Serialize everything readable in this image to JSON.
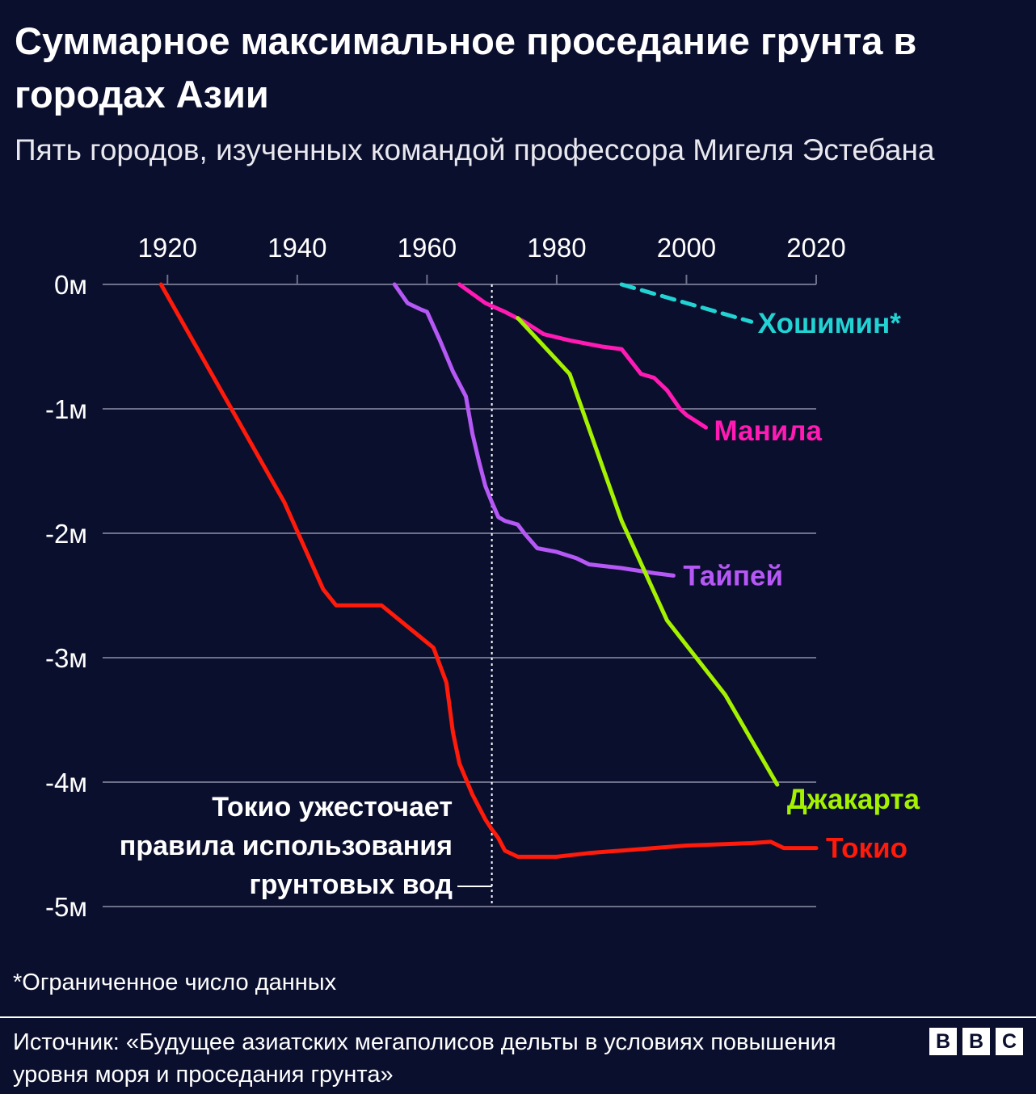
{
  "title": "Суммарное максимальное проседание грунта в городах Азии",
  "subtitle": "Пять городов, изученных командой профессора Мигеля Эстебана",
  "footnote": "*Ограниченное число данных",
  "source": "Источник: «Будущее азиатских мегаполисов дельты в условиях повышения уровня моря и проседания грунта»",
  "logo": [
    "B",
    "B",
    "C"
  ],
  "chart_data": {
    "type": "line",
    "title": "Суммарное максимальное проседание грунта в городах Азии",
    "xlabel": "",
    "ylabel": "",
    "xlim": [
      1910,
      2020
    ],
    "ylim": [
      -5,
      0
    ],
    "x_ticks": [
      1920,
      1940,
      1960,
      1980,
      2000,
      2020
    ],
    "x_tick_labels": [
      "1920",
      "1940",
      "1960",
      "1980",
      "2000",
      "2020"
    ],
    "y_ticks": [
      0,
      -1,
      -2,
      -3,
      -4,
      -5
    ],
    "y_tick_labels": [
      "0м",
      "-1м",
      "-2м",
      "-3м",
      "-4м",
      "-5м"
    ],
    "grid": true,
    "series": [
      {
        "name": "Токио",
        "color": "#ff1a0a",
        "dashed": false,
        "x": [
          1919,
          1938,
          1941,
          1944,
          1946,
          1953,
          1961,
          1963,
          1964,
          1965,
          1967,
          1968,
          1969,
          1970,
          1971,
          1972,
          1974,
          1975,
          1980,
          1985,
          1990,
          1995,
          2000,
          2005,
          2010,
          2013,
          2015,
          2020
        ],
        "y": [
          0,
          -1.75,
          -2.1,
          -2.45,
          -2.58,
          -2.58,
          -2.92,
          -3.2,
          -3.6,
          -3.85,
          -4.1,
          -4.2,
          -4.3,
          -4.38,
          -4.45,
          -4.55,
          -4.6,
          -4.6,
          -4.6,
          -4.57,
          -4.55,
          -4.53,
          -4.51,
          -4.5,
          -4.49,
          -4.48,
          -4.53,
          -4.53
        ],
        "label_value": "Токио"
      },
      {
        "name": "Тайпей",
        "color": "#b558f5",
        "dashed": false,
        "x": [
          1955,
          1957,
          1959,
          1960,
          1962,
          1964,
          1966,
          1967,
          1968,
          1969,
          1970,
          1971,
          1972,
          1974,
          1975,
          1977,
          1980,
          1983,
          1985,
          1990,
          1995,
          1998
        ],
        "y": [
          0,
          -0.15,
          -0.2,
          -0.22,
          -0.45,
          -0.7,
          -0.9,
          -1.2,
          -1.42,
          -1.62,
          -1.75,
          -1.87,
          -1.9,
          -1.93,
          -2.0,
          -2.12,
          -2.15,
          -2.2,
          -2.25,
          -2.28,
          -2.32,
          -2.34
        ],
        "label_value": "Тайпей"
      },
      {
        "name": "Манила",
        "color": "#ff1ab3",
        "dashed": false,
        "x": [
          1965,
          1969,
          1972,
          1975,
          1978,
          1982,
          1987,
          1990,
          1993,
          1995,
          1997,
          1999,
          2000,
          2003
        ],
        "y": [
          0,
          -0.15,
          -0.22,
          -0.3,
          -0.4,
          -0.45,
          -0.5,
          -0.52,
          -0.72,
          -0.75,
          -0.85,
          -1.0,
          -1.05,
          -1.15
        ],
        "label_value": "Манила"
      },
      {
        "name": "Джакарта",
        "color": "#a4f200",
        "dashed": false,
        "x": [
          1974,
          1982,
          1990,
          1997,
          2006,
          2014
        ],
        "y": [
          -0.27,
          -0.72,
          -1.9,
          -2.7,
          -3.3,
          -4.02
        ],
        "label_value": "Джакарта"
      },
      {
        "name": "Хошимин*",
        "color": "#22d3d3",
        "dashed": true,
        "x": [
          1990,
          2000,
          2010
        ],
        "y": [
          0,
          -0.15,
          -0.3
        ],
        "label_value": "Хошимин*"
      }
    ],
    "annotations": [
      {
        "x": 1970,
        "lines": [
          "Токио ужесточает",
          "правила использования",
          "грунтовых вод"
        ]
      }
    ]
  }
}
